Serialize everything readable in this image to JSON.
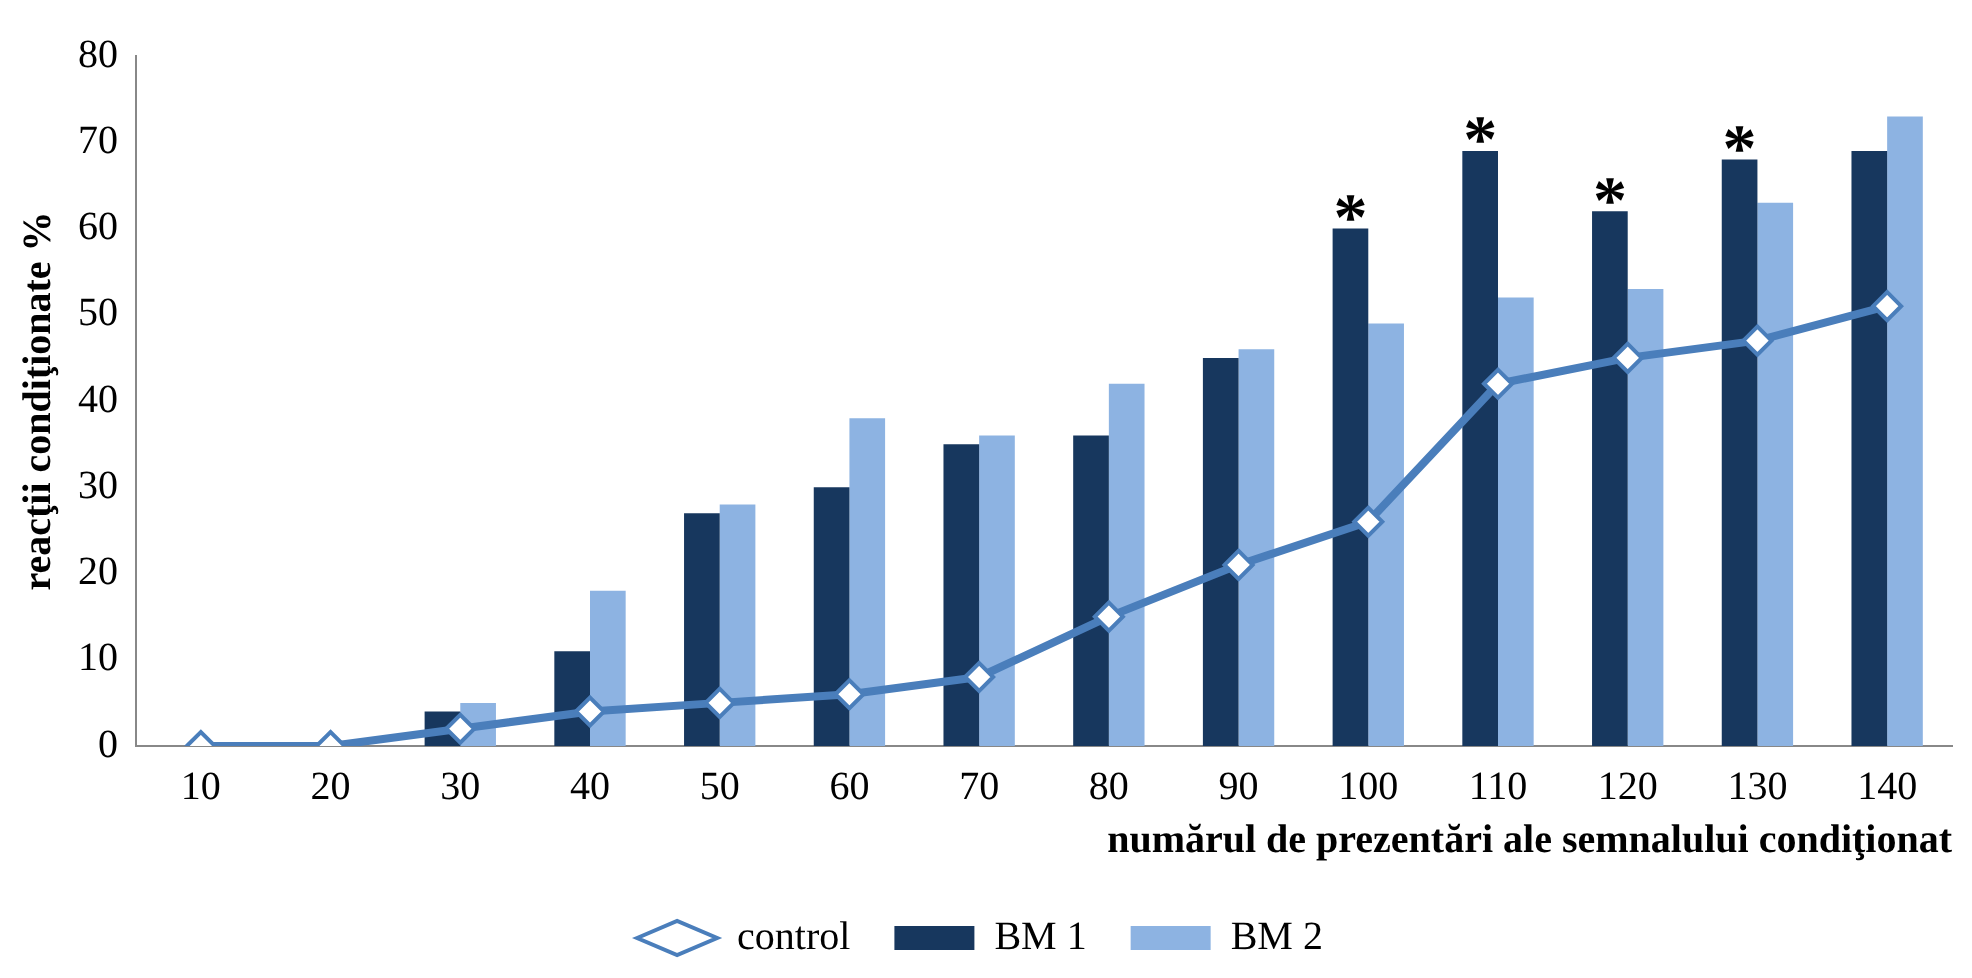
{
  "chart_data": {
    "type": "bar",
    "xlabel": "numărul de prezentări ale semnalului condiţionat",
    "ylabel": "reacţii condiţionate %",
    "categories": [
      "10",
      "20",
      "30",
      "40",
      "50",
      "60",
      "70",
      "80",
      "90",
      "100",
      "110",
      "120",
      "130",
      "140"
    ],
    "series": [
      {
        "name": "BM 1",
        "color": "#17375e",
        "values": [
          0,
          0,
          4,
          11,
          27,
          30,
          35,
          36,
          45,
          60,
          69,
          62,
          68,
          69
        ]
      },
      {
        "name": "BM 2",
        "color": "#8db3e2",
        "values": [
          0,
          0,
          5,
          18,
          28,
          38,
          36,
          42,
          46,
          49,
          52,
          53,
          63,
          73
        ]
      },
      {
        "name": "control",
        "type": "line",
        "color": "#4a7ebb",
        "marker": "diamond",
        "values": [
          0,
          0,
          2,
          4,
          5,
          6,
          8,
          15,
          21,
          26,
          42,
          45,
          47,
          51
        ]
      }
    ],
    "ylim": [
      0,
      80
    ],
    "yticks": [
      0,
      10,
      20,
      30,
      40,
      50,
      60,
      70,
      80
    ],
    "grid": false,
    "legend": "bottom",
    "annotations": [
      {
        "text": "*",
        "x": "100",
        "y": 60
      },
      {
        "text": "*",
        "x": "110",
        "y": 69
      },
      {
        "text": "*",
        "x": "120",
        "y": 62
      },
      {
        "text": "*",
        "x": "130",
        "y": 68
      }
    ]
  }
}
